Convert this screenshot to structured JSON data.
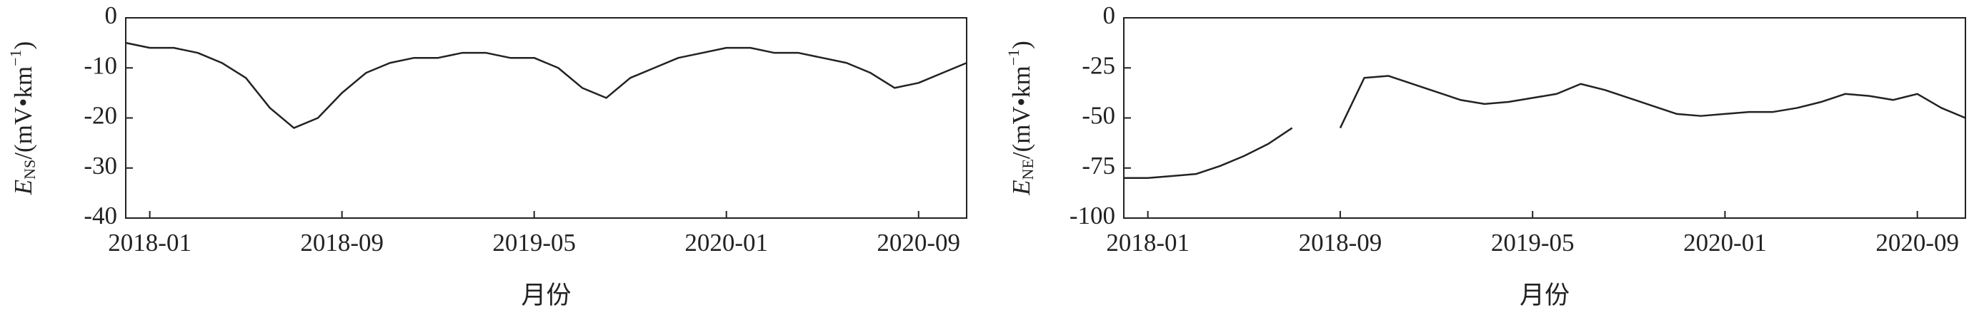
{
  "chart_data": [
    {
      "type": "line",
      "y_label": {
        "symbol": "E",
        "subscript": "NS",
        "unit": "/(mV•km",
        "unit_exponent": "−1",
        "close": ")"
      },
      "x_label": "月份",
      "x": [
        "2017-12",
        "2018-01",
        "2018-02",
        "2018-03",
        "2018-04",
        "2018-05",
        "2018-06",
        "2018-07",
        "2018-08",
        "2018-09",
        "2018-10",
        "2018-11",
        "2018-12",
        "2019-01",
        "2019-02",
        "2019-03",
        "2019-04",
        "2019-05",
        "2019-06",
        "2019-07",
        "2019-08",
        "2019-09",
        "2019-10",
        "2019-11",
        "2019-12",
        "2020-01",
        "2020-02",
        "2020-03",
        "2020-04",
        "2020-05",
        "2020-06",
        "2020-07",
        "2020-08",
        "2020-09",
        "2020-10",
        "2020-11"
      ],
      "series": [
        {
          "color": "#222222",
          "values": [
            -5,
            -6,
            -6,
            -7,
            -9,
            -12,
            -18,
            -22,
            -20,
            -15,
            -11,
            -9,
            -8,
            -8,
            -7,
            -7,
            -8,
            -8,
            -10,
            -14,
            -16,
            -12,
            -10,
            -8,
            -7,
            -6,
            -6,
            -7,
            -7,
            -8,
            -9,
            -11,
            -14,
            -13,
            -11,
            -9
          ]
        }
      ],
      "xlim": [
        "2017-12",
        "2020-11"
      ],
      "xticks": [
        "2018-01",
        "2018-09",
        "2019-05",
        "2020-01",
        "2020-09"
      ],
      "ylim": [
        -40,
        0
      ],
      "yticks": [
        0,
        -10,
        -20,
        -30,
        -40
      ]
    },
    {
      "type": "line",
      "y_label": {
        "symbol": "E",
        "subscript": "NE",
        "unit": "/(mV•km",
        "unit_exponent": "−1",
        "close": ")"
      },
      "x_label": "月份",
      "x": [
        "2017-12",
        "2018-01",
        "2018-02",
        "2018-03",
        "2018-04",
        "2018-05",
        "2018-06",
        "2018-07",
        "2018-08",
        "2018-09",
        "2018-10",
        "2018-11",
        "2018-12",
        "2019-01",
        "2019-02",
        "2019-03",
        "2019-04",
        "2019-05",
        "2019-06",
        "2019-07",
        "2019-08",
        "2019-09",
        "2019-10",
        "2019-11",
        "2019-12",
        "2020-01",
        "2020-02",
        "2020-03",
        "2020-04",
        "2020-05",
        "2020-06",
        "2020-07",
        "2020-08",
        "2020-09",
        "2020-10",
        "2020-11"
      ],
      "series": [
        {
          "color": "#222222",
          "values": [
            -80,
            -80,
            -79,
            -78,
            -74,
            -69,
            -63,
            -55,
            null,
            -55,
            -30,
            -29,
            -33,
            -37,
            -41,
            -43,
            -42,
            -40,
            -38,
            -33,
            -36,
            -40,
            -44,
            -48,
            -49,
            -48,
            -47,
            -47,
            -45,
            -42,
            -38,
            -39,
            -41,
            -38,
            -45,
            -50
          ]
        }
      ],
      "xlim": [
        "2017-12",
        "2020-11"
      ],
      "xticks": [
        "2018-01",
        "2018-09",
        "2019-05",
        "2020-01",
        "2020-09"
      ],
      "ylim": [
        -100,
        0
      ],
      "yticks": [
        0,
        -25,
        -50,
        -75,
        -100
      ]
    }
  ]
}
